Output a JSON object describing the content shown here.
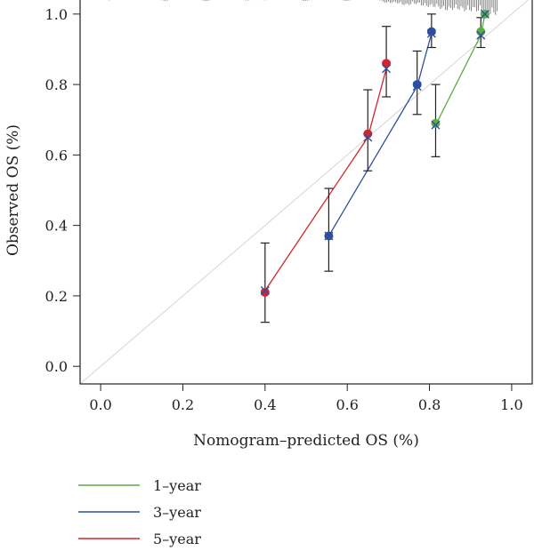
{
  "chart_data": {
    "type": "scatter",
    "title": "",
    "xlabel": "Nomogram–predicted OS (%)",
    "ylabel": "Observed OS (%)",
    "xlim": [
      -0.05,
      1.05
    ],
    "ylim": [
      -0.05,
      1.05
    ],
    "x_ticks": [
      "0.0",
      "0.2",
      "0.4",
      "0.6",
      "0.8",
      "1.0"
    ],
    "y_ticks": [
      "0.0",
      "0.2",
      "0.4",
      "0.6",
      "0.8",
      "1.0"
    ],
    "grid": false,
    "reference_line": "diagonal",
    "legend_position": "bottom-left",
    "series": [
      {
        "name": "1–year",
        "color": "#5aad3e",
        "points": [
          {
            "x": 0.815,
            "y": 0.69,
            "err_low": 0.595,
            "err_high": 0.8,
            "pred": 0.685
          },
          {
            "x": 0.925,
            "y": 0.95,
            "err_low": 0.905,
            "err_high": 0.99,
            "pred": 0.94
          },
          {
            "x": 0.935,
            "y": 1.0,
            "err_low": 1.0,
            "err_high": 1.0,
            "pred": 1.0
          }
        ]
      },
      {
        "name": "3–year",
        "color": "#2d4fa1",
        "points": [
          {
            "x": 0.555,
            "y": 0.37,
            "err_low": 0.27,
            "err_high": 0.505,
            "pred": 0.37
          },
          {
            "x": 0.77,
            "y": 0.8,
            "err_low": 0.715,
            "err_high": 0.895,
            "pred": 0.795
          },
          {
            "x": 0.805,
            "y": 0.95,
            "err_low": 0.905,
            "err_high": 1.0,
            "pred": 0.945
          }
        ]
      },
      {
        "name": "5–year",
        "color": "#d6242b",
        "points": [
          {
            "x": 0.4,
            "y": 0.21,
            "err_low": 0.125,
            "err_high": 0.35,
            "pred": 0.215
          },
          {
            "x": 0.65,
            "y": 0.66,
            "err_low": 0.555,
            "err_high": 0.785,
            "pred": 0.65
          },
          {
            "x": 0.695,
            "y": 0.86,
            "err_low": 0.765,
            "err_high": 0.965,
            "pred": 0.845
          }
        ]
      }
    ]
  }
}
